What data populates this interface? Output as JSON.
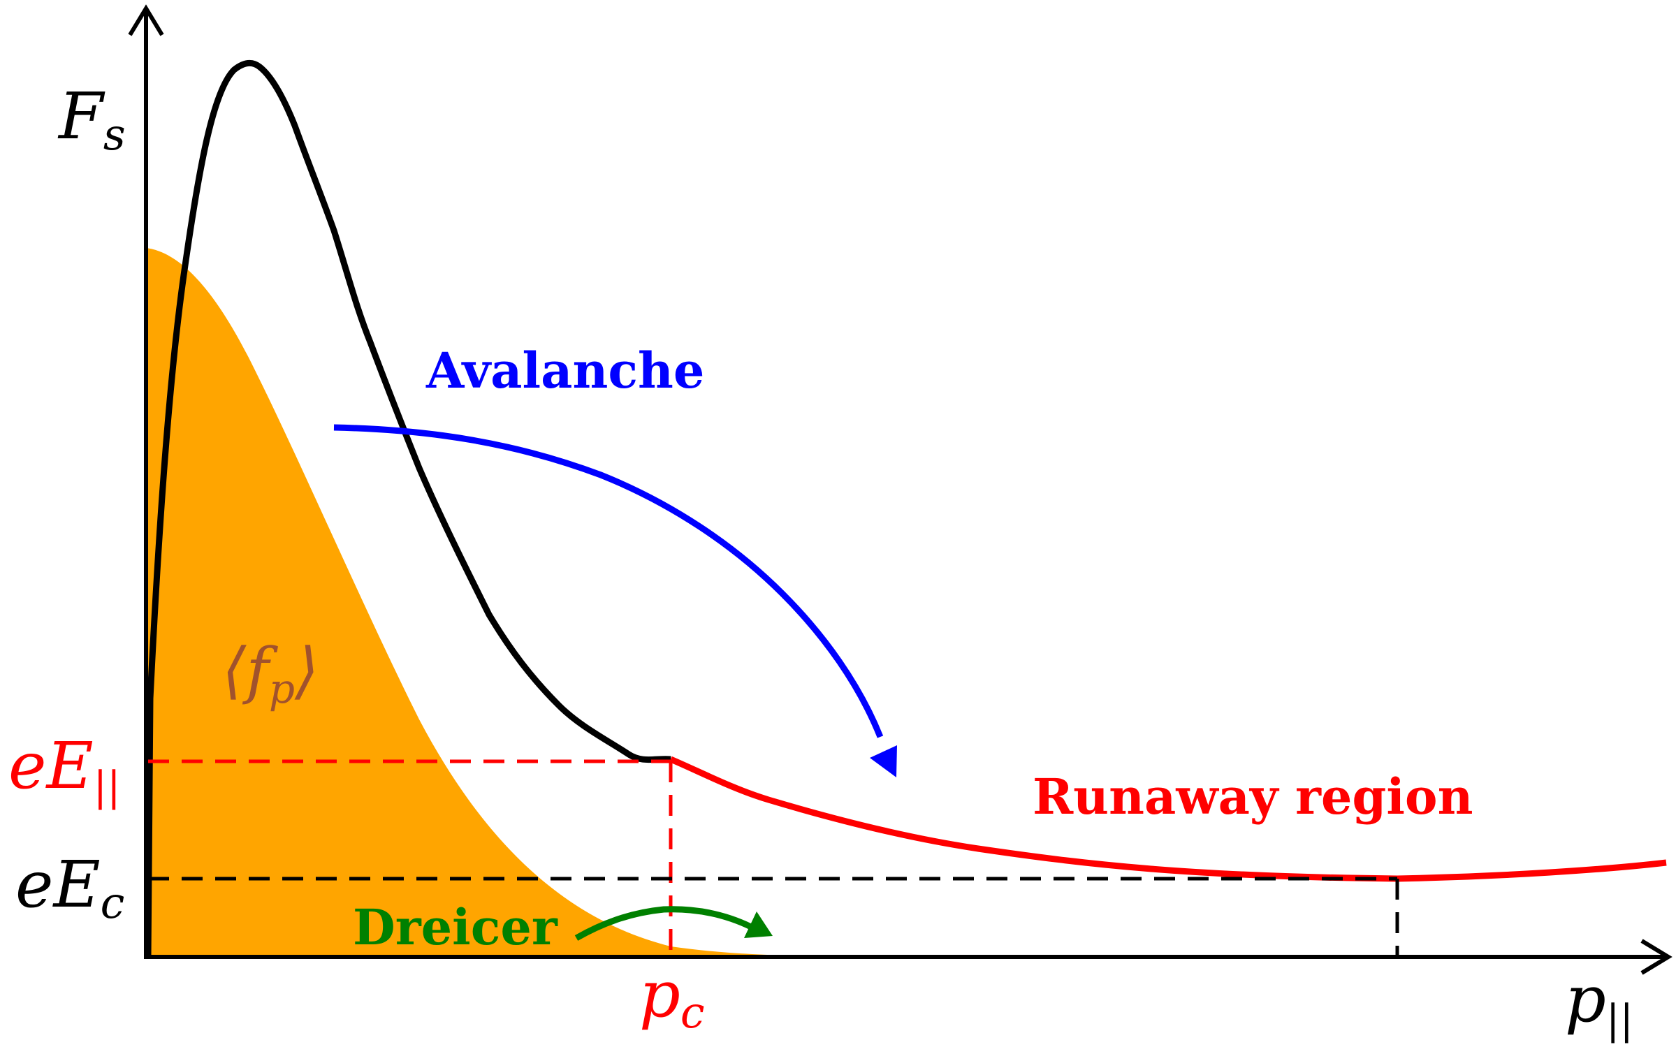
{
  "axes": {
    "y_label": "F",
    "y_label_sub": "s",
    "x_label": "p",
    "x_label_sub": "||"
  },
  "labels": {
    "distribution": "⟨f",
    "distribution_sub": "p",
    "distribution_close": "⟩",
    "eE_parallel": "eE",
    "eE_parallel_sub": "||",
    "eE_c": "eE",
    "eE_c_sub": "c",
    "p_c": "p",
    "p_c_sub": "c"
  },
  "annotations": {
    "avalanche": "Avalanche",
    "dreicer": "Dreicer",
    "runaway": "Runaway region"
  },
  "colors": {
    "axis": "#000000",
    "distribution_fill": "#FFA500",
    "distribution_label": "#A0522D",
    "friction_curve": "#000000",
    "runaway_curve": "#FF0000",
    "avalanche": "#0000FF",
    "dreicer": "#008000",
    "eE_parallel": "#FF0000",
    "eE_c": "#000000"
  }
}
